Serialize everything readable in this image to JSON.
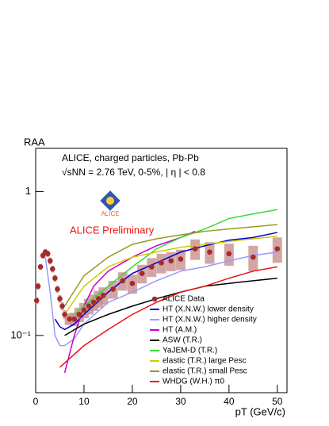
{
  "chart_data": {
    "type": "line",
    "title": "ALICE, charged particles, Pb-Pb",
    "subtitle": "√sNN = 2.76 TeV, 0-5%, | η | < 0.8",
    "annotation": "ALICE Preliminary",
    "y_label": "RAA",
    "x_label": "pT (GeV/c)",
    "xlim": [
      0,
      52
    ],
    "ylim": [
      0.04,
      2
    ],
    "log_y": true,
    "xticks": [
      0,
      10,
      20,
      30,
      40,
      50
    ],
    "yticks": [
      1,
      {
        "value": 0.1,
        "label": "10⁻¹"
      }
    ],
    "data": {
      "name": "ALICE Data",
      "color": "#a52a2a",
      "box_color": "#c89090",
      "x": [
        0.2,
        0.5,
        1,
        1.5,
        2,
        2.5,
        3,
        3.5,
        4,
        4.5,
        5,
        5.5,
        6,
        7,
        8,
        9,
        10,
        11,
        12,
        13,
        14,
        16,
        18,
        20,
        22,
        24,
        26,
        28,
        30,
        33,
        36,
        40,
        45,
        50
      ],
      "values": [
        0.175,
        0.22,
        0.3,
        0.36,
        0.38,
        0.37,
        0.33,
        0.29,
        0.25,
        0.21,
        0.18,
        0.16,
        0.14,
        0.13,
        0.13,
        0.14,
        0.15,
        0.16,
        0.17,
        0.18,
        0.19,
        0.21,
        0.24,
        0.23,
        0.27,
        0.3,
        0.32,
        0.33,
        0.34,
        0.4,
        0.38,
        0.37,
        0.35,
        0.4
      ],
      "syst": [
        0.01,
        0.012,
        0.015,
        0.018,
        0.02,
        0.02,
        0.018,
        0.016,
        0.014,
        0.012,
        0.011,
        0.01,
        0.01,
        0.012,
        0.014,
        0.016,
        0.018,
        0.02,
        0.022,
        0.024,
        0.026,
        0.03,
        0.035,
        0.035,
        0.04,
        0.045,
        0.05,
        0.05,
        0.055,
        0.065,
        0.065,
        0.065,
        0.07,
        0.08
      ]
    },
    "series": [
      {
        "name": "HT (X.N.W.) lower density",
        "color": "#0000cc",
        "x": [
          4,
          5,
          6,
          8,
          10,
          15,
          20,
          25,
          30,
          35,
          40,
          45,
          50
        ],
        "values": [
          0.13,
          0.115,
          0.11,
          0.12,
          0.14,
          0.2,
          0.27,
          0.32,
          0.38,
          0.42,
          0.46,
          0.48,
          0.52
        ]
      },
      {
        "name": "HT (X.N.W.) higher density",
        "color": "#9999ff",
        "x": [
          2,
          3,
          4,
          5,
          6,
          8,
          10,
          15,
          20,
          25,
          30,
          35,
          40,
          45,
          50
        ],
        "values": [
          0.35,
          0.2,
          0.1,
          0.085,
          0.085,
          0.095,
          0.12,
          0.17,
          0.2,
          0.24,
          0.28,
          0.3,
          0.33,
          0.36,
          0.38
        ]
      },
      {
        "name": "HT (A.M.)",
        "color": "#cc00cc",
        "x": [
          6,
          8,
          10,
          12,
          15,
          20,
          25,
          30,
          33
        ],
        "values": [
          0.055,
          0.1,
          0.16,
          0.22,
          0.28,
          0.35,
          0.42,
          0.48,
          0.53
        ]
      },
      {
        "name": "ASW (T.R.)",
        "color": "#000000",
        "x": [
          6,
          10,
          15,
          20,
          25,
          30,
          35,
          40,
          45,
          50
        ],
        "values": [
          0.1,
          0.12,
          0.14,
          0.16,
          0.18,
          0.2,
          0.22,
          0.23,
          0.24,
          0.25
        ]
      },
      {
        "name": "YaJEM-D (T.R.)",
        "color": "#33dd33",
        "x": [
          8,
          10,
          15,
          20,
          25,
          30,
          35,
          40,
          45,
          50
        ],
        "values": [
          0.14,
          0.16,
          0.22,
          0.3,
          0.4,
          0.48,
          0.55,
          0.65,
          0.7,
          0.75
        ]
      },
      {
        "name": "elastic (T.R.) large Pesc",
        "color": "#cccc00",
        "x": [
          6,
          10,
          15,
          20,
          25,
          30,
          35,
          40,
          45,
          50
        ],
        "values": [
          0.14,
          0.22,
          0.3,
          0.35,
          0.38,
          0.41,
          0.43,
          0.45,
          0.47,
          0.49
        ]
      },
      {
        "name": "elastic (T.R.) small Pesc",
        "color": "#999922",
        "x": [
          6,
          10,
          15,
          20,
          25,
          30,
          35,
          40,
          45,
          50
        ],
        "values": [
          0.16,
          0.26,
          0.35,
          0.43,
          0.47,
          0.5,
          0.53,
          0.55,
          0.57,
          0.59
        ]
      },
      {
        "name": "WHDG (W.H.) π0",
        "color": "#ee1111",
        "x": [
          5,
          10,
          15,
          20,
          25,
          30,
          35,
          40,
          45,
          50
        ],
        "values": [
          0.06,
          0.085,
          0.11,
          0.14,
          0.17,
          0.2,
          0.22,
          0.25,
          0.28,
          0.3
        ]
      }
    ]
  }
}
